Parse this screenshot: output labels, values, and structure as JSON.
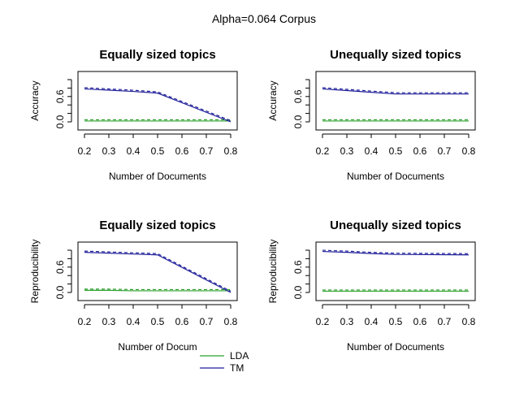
{
  "figure": {
    "title": "Alpha=0.064 Corpus"
  },
  "legend": {
    "placement": "bottom-center",
    "items": [
      {
        "label": "LDA",
        "color": "#2ca02c"
      },
      {
        "label": "TM",
        "color": "#1f1f9a"
      }
    ]
  },
  "chart_data": [
    {
      "type": "line",
      "title": "Equally sized topics",
      "xlabel": "Number of Documents",
      "ylabel": "Accuracy",
      "xlim": [
        0.2,
        0.8
      ],
      "ylim": [
        0.0,
        1.0
      ],
      "x_ticks": [
        "0.2",
        "0.3",
        "0.4",
        "0.5",
        "0.6",
        "0.7",
        "0.8"
      ],
      "y_ticks": [
        "0.0",
        "0.6"
      ],
      "x": [
        0.2,
        0.3,
        0.4,
        0.5,
        0.8
      ],
      "series": [
        {
          "name": "LDA",
          "color": "#2ca02c",
          "values": [
            0.02,
            0.02,
            0.02,
            0.02,
            0.02
          ]
        },
        {
          "name": "TM",
          "color": "#1f1f9a",
          "values": [
            0.78,
            0.75,
            0.72,
            0.68,
            0.0
          ]
        }
      ]
    },
    {
      "type": "line",
      "title": "Unequally sized topics",
      "xlabel": "Number of Documents",
      "ylabel": "Accuracy",
      "xlim": [
        0.2,
        0.8
      ],
      "ylim": [
        0.0,
        1.0
      ],
      "x_ticks": [
        "0.2",
        "0.3",
        "0.4",
        "0.5",
        "0.6",
        "0.7",
        "0.8"
      ],
      "y_ticks": [
        "0.0",
        "0.6"
      ],
      "x": [
        0.2,
        0.3,
        0.4,
        0.5,
        0.8
      ],
      "series": [
        {
          "name": "LDA",
          "color": "#2ca02c",
          "values": [
            0.02,
            0.02,
            0.02,
            0.02,
            0.02
          ]
        },
        {
          "name": "TM",
          "color": "#1f1f9a",
          "values": [
            0.78,
            0.74,
            0.7,
            0.66,
            0.66
          ]
        }
      ]
    },
    {
      "type": "line",
      "title": "Equally sized topics",
      "xlabel": "Number of Docum",
      "ylabel": "Reproducibility",
      "xlim": [
        0.2,
        0.8
      ],
      "ylim": [
        0.0,
        1.0
      ],
      "x_ticks": [
        "0.2",
        "0.3",
        "0.4",
        "0.5",
        "0.6",
        "0.7",
        "0.8"
      ],
      "y_ticks": [
        "0.0",
        "0.6"
      ],
      "x": [
        0.2,
        0.3,
        0.4,
        0.5,
        0.8
      ],
      "series": [
        {
          "name": "LDA",
          "color": "#2ca02c",
          "values": [
            0.05,
            0.05,
            0.04,
            0.04,
            0.04
          ]
        },
        {
          "name": "TM",
          "color": "#1f1f9a",
          "values": [
            0.95,
            0.93,
            0.91,
            0.89,
            0.0
          ]
        }
      ]
    },
    {
      "type": "line",
      "title": "Unequally sized topics",
      "xlabel": "Number of Documents",
      "ylabel": "Reproducibility",
      "xlim": [
        0.2,
        0.8
      ],
      "ylim": [
        0.0,
        1.0
      ],
      "x_ticks": [
        "0.2",
        "0.3",
        "0.4",
        "0.5",
        "0.6",
        "0.7",
        "0.8"
      ],
      "y_ticks": [
        "0.0",
        "0.6"
      ],
      "x": [
        0.2,
        0.3,
        0.4,
        0.5,
        0.8
      ],
      "series": [
        {
          "name": "LDA",
          "color": "#2ca02c",
          "values": [
            0.03,
            0.03,
            0.03,
            0.03,
            0.03
          ]
        },
        {
          "name": "TM",
          "color": "#1f1f9a",
          "values": [
            0.97,
            0.95,
            0.92,
            0.9,
            0.89
          ]
        }
      ]
    }
  ]
}
